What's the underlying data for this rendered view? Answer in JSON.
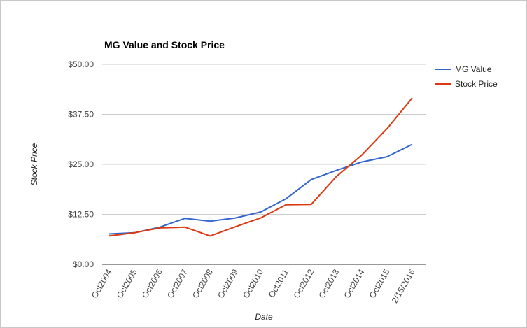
{
  "chart_data": {
    "type": "line",
    "title": "MG Value and Stock Price",
    "xlabel": "Date",
    "ylabel": "Stock Price",
    "categories": [
      "Oct2004",
      "Oct2005",
      "Oct2006",
      "Oct2007",
      "Oct2008",
      "Oct2009",
      "Oct2010",
      "Oct2011",
      "Oct2012",
      "Oct2013",
      "Oct2014",
      "Oct2015",
      "2/15/2016"
    ],
    "yticks": [
      "$0.00",
      "$12.50",
      "$25.00",
      "$37.50",
      "$50.00"
    ],
    "ylim": [
      0,
      50
    ],
    "grid": true,
    "legend_position": "right",
    "series": [
      {
        "name": "MG Value",
        "color": "#3366cc",
        "values": [
          7.6,
          7.9,
          9.3,
          11.5,
          10.8,
          11.6,
          13.1,
          16.4,
          21.2,
          23.5,
          25.6,
          26.9,
          30.0
        ]
      },
      {
        "name": "Stock Price",
        "color": "#dc3912",
        "values": [
          7.1,
          7.9,
          9.1,
          9.3,
          7.1,
          9.4,
          11.6,
          14.9,
          15.0,
          22.0,
          27.3,
          33.9,
          41.6
        ]
      }
    ]
  }
}
